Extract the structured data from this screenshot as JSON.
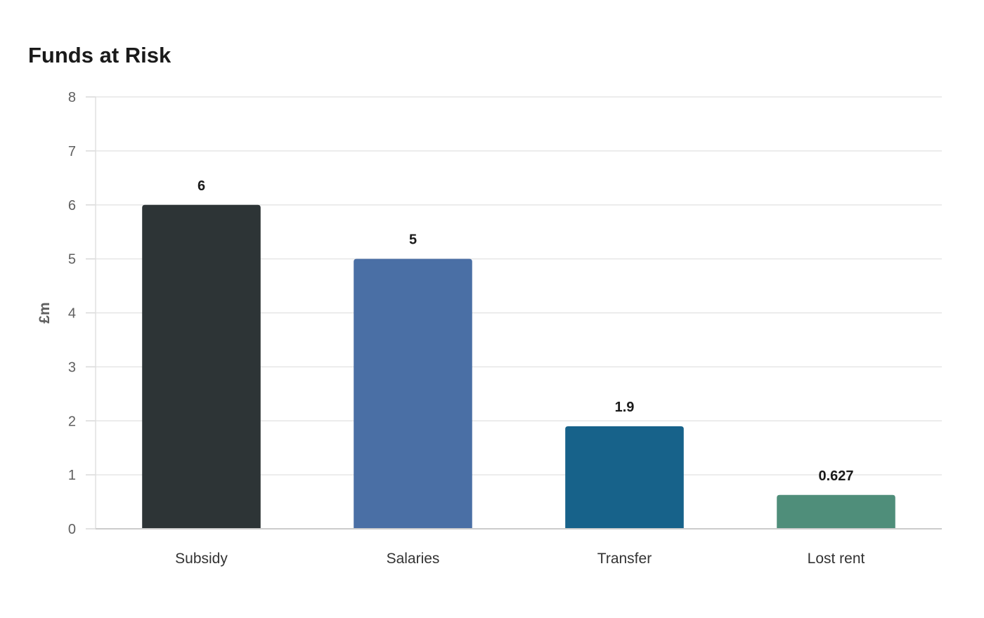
{
  "chart_data": {
    "type": "bar",
    "title": "Funds at Risk",
    "xlabel": "",
    "ylabel": "£m",
    "categories": [
      "Subsidy",
      "Salaries",
      "Transfer",
      "Lost rent"
    ],
    "values": [
      6,
      5,
      1.9,
      0.627
    ],
    "data_labels": [
      "6",
      "5",
      "1.9",
      "0.627"
    ],
    "colors": [
      "#2d3436",
      "#4a6fa5",
      "#17628a",
      "#4f8e7a"
    ],
    "ylim": [
      0,
      8
    ],
    "yticks": [
      0,
      1,
      2,
      3,
      4,
      5,
      6,
      7,
      8
    ],
    "grid": true,
    "legend": "none"
  }
}
